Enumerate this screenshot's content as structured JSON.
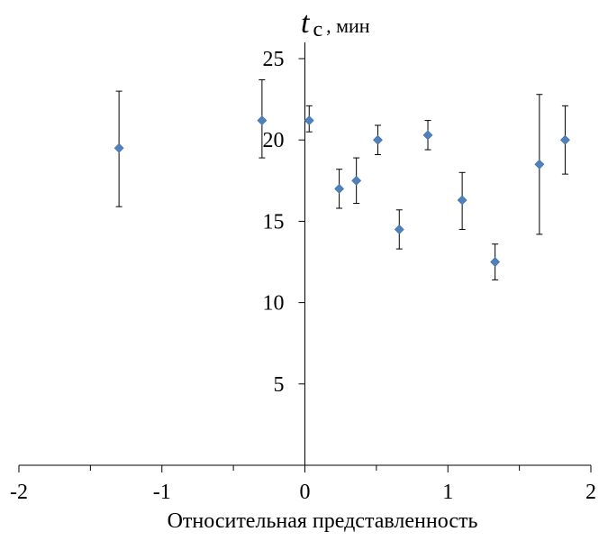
{
  "chart_data": {
    "type": "scatter",
    "title": "",
    "xlabel": "Относительная представленность",
    "ylabel": {
      "variable": "t",
      "subscript": "c",
      "unit": ", мин"
    },
    "xlim": [
      -2,
      2
    ],
    "ylim": [
      0,
      26
    ],
    "x_ticks": [
      -2,
      -1,
      0,
      1,
      2
    ],
    "x_tick_labels": [
      "-2",
      "-1",
      "0",
      "1",
      "2"
    ],
    "x_minor_step": 0.5,
    "y_ticks": [
      5,
      10,
      15,
      20,
      25
    ],
    "y_tick_labels": [
      "5",
      "10",
      "15",
      "20",
      "25"
    ],
    "grid": false,
    "legend": "none",
    "marker": "diamond",
    "marker_color": "#4f81bd",
    "errorbar_color": "#000000",
    "points": [
      {
        "x": -1.3,
        "y": 19.5,
        "err_low": 3.6,
        "err_high": 3.5
      },
      {
        "x": -0.3,
        "y": 21.2,
        "err_low": 2.3,
        "err_high": 2.5
      },
      {
        "x": 0.03,
        "y": 21.2,
        "err_low": 0.7,
        "err_high": 0.9
      },
      {
        "x": 0.24,
        "y": 17.0,
        "err_low": 1.2,
        "err_high": 1.2
      },
      {
        "x": 0.36,
        "y": 17.5,
        "err_low": 1.4,
        "err_high": 1.4
      },
      {
        "x": 0.51,
        "y": 20.0,
        "err_low": 0.9,
        "err_high": 0.9
      },
      {
        "x": 0.66,
        "y": 14.5,
        "err_low": 1.2,
        "err_high": 1.2
      },
      {
        "x": 0.86,
        "y": 20.3,
        "err_low": 0.9,
        "err_high": 0.9
      },
      {
        "x": 1.1,
        "y": 16.3,
        "err_low": 1.8,
        "err_high": 1.7
      },
      {
        "x": 1.33,
        "y": 12.5,
        "err_low": 1.1,
        "err_high": 1.1
      },
      {
        "x": 1.64,
        "y": 18.5,
        "err_low": 4.3,
        "err_high": 4.3
      },
      {
        "x": 1.82,
        "y": 20.0,
        "err_low": 2.1,
        "err_high": 2.1
      }
    ]
  }
}
